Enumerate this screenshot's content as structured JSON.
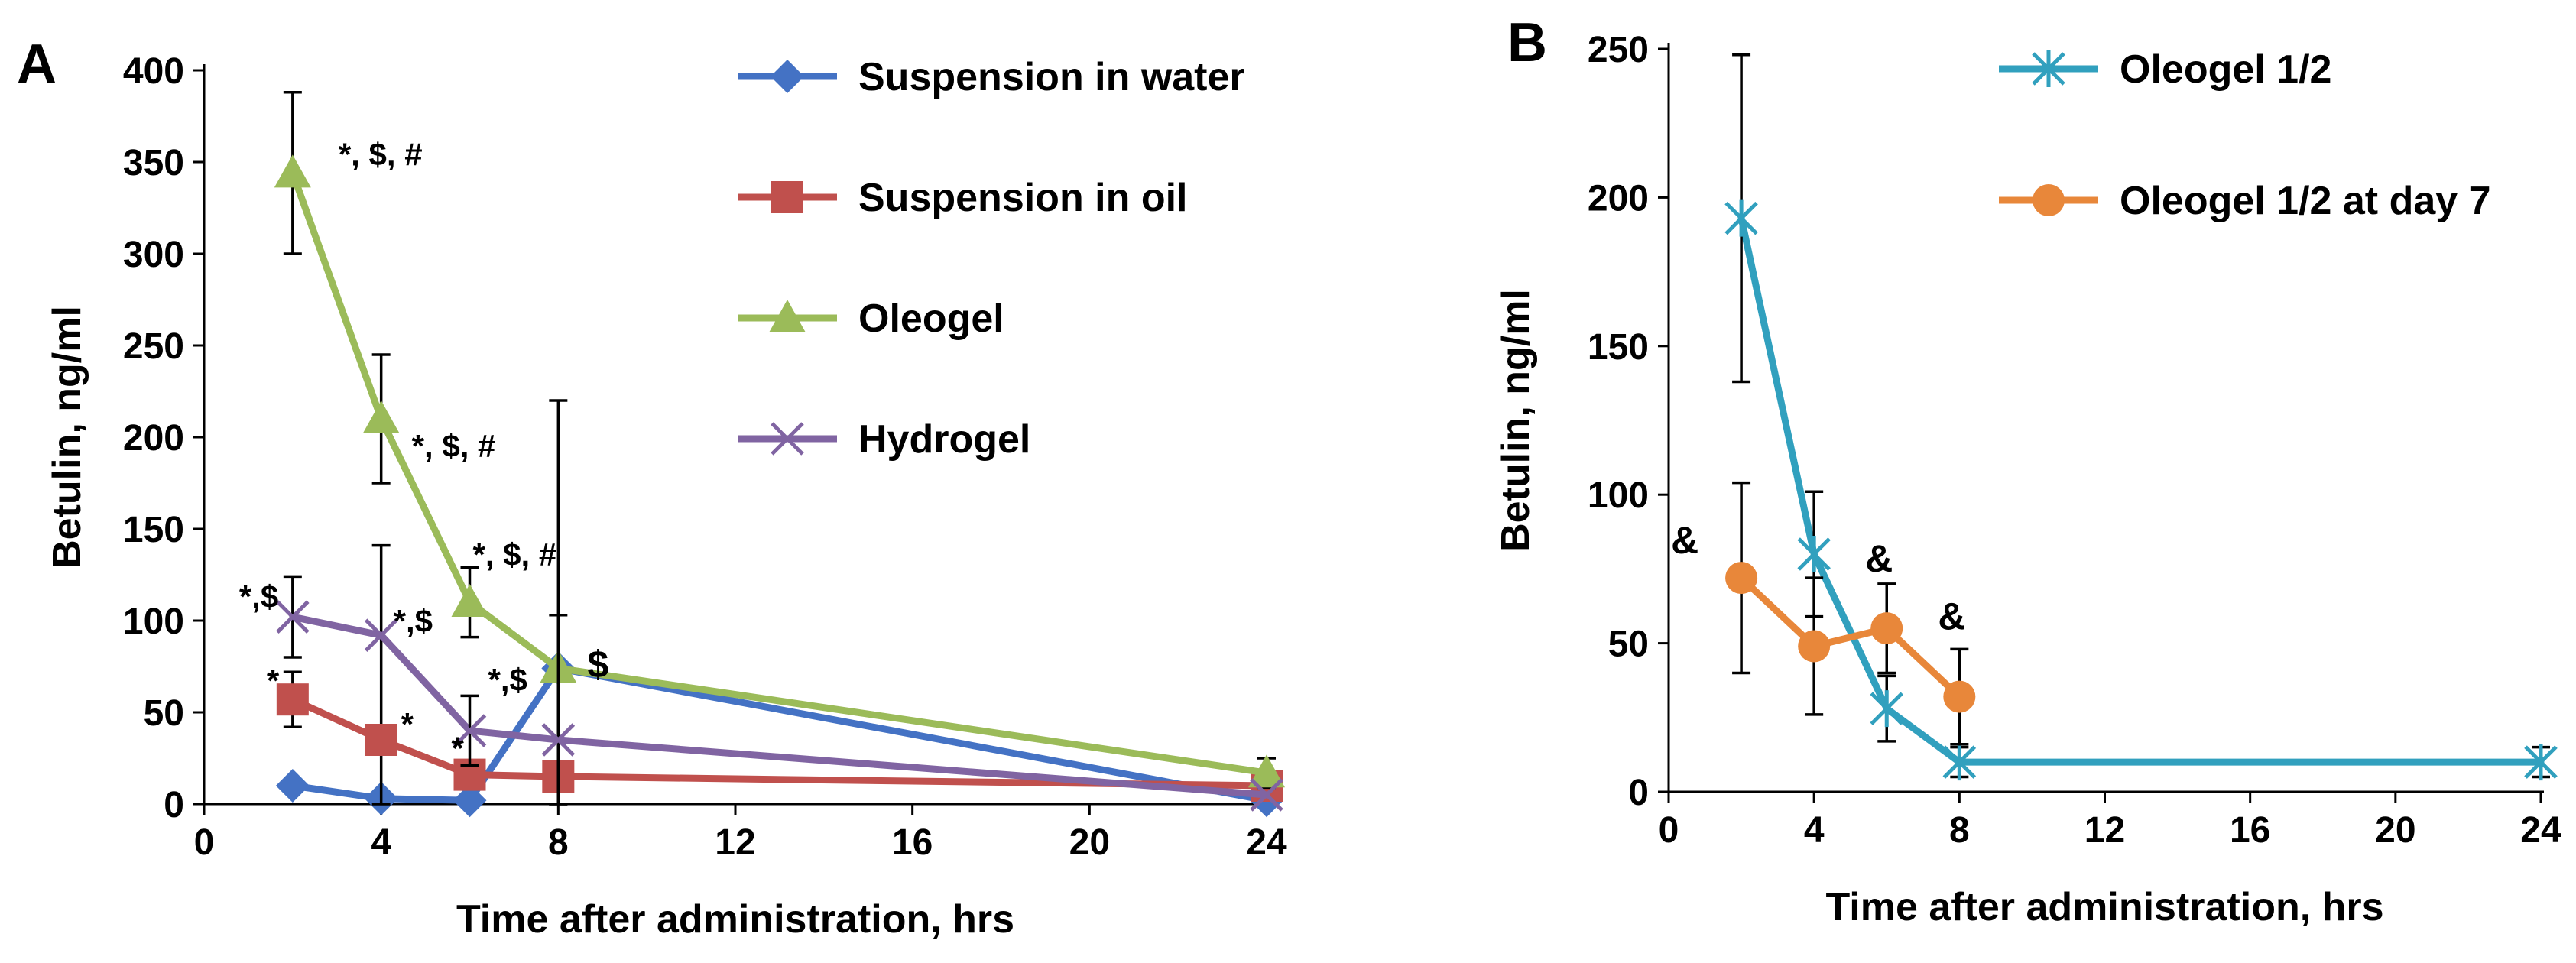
{
  "chart_data": [
    {
      "panel": "A",
      "type": "line",
      "xlabel": "Time after administration, hrs",
      "ylabel": "Betulin, ng/ml",
      "xlim": [
        0,
        24
      ],
      "ylim": [
        0,
        400
      ],
      "x_ticks": [
        "0",
        "4",
        "8",
        "12",
        "16",
        "20",
        "24"
      ],
      "y_ticks": [
        "0",
        "50",
        "100",
        "150",
        "200",
        "250",
        "300",
        "350",
        "400"
      ],
      "legend_position": "top-right",
      "series": [
        {
          "name": "Suspension in water",
          "color": "#4472C4",
          "marker": "diamond",
          "x": [
            2,
            4,
            6,
            8,
            24
          ],
          "y": [
            10,
            3,
            2,
            74,
            2
          ],
          "err": [
            null,
            null,
            null,
            null,
            null
          ]
        },
        {
          "name": "Suspension in oil",
          "color": "#C0504D",
          "marker": "square",
          "x": [
            2,
            4,
            6,
            8,
            24
          ],
          "y": [
            57,
            35,
            16,
            15,
            10
          ],
          "err": [
            15,
            106,
            0,
            0,
            0
          ]
        },
        {
          "name": "Oleogel",
          "color": "#9BBB59",
          "marker": "triangle",
          "x": [
            2,
            4,
            6,
            8,
            24
          ],
          "y": [
            344,
            210,
            110,
            74,
            17
          ],
          "err": [
            44,
            35,
            19,
            146,
            8
          ]
        },
        {
          "name": "Hydrogel",
          "color": "#8064A2",
          "marker": "x",
          "x": [
            2,
            4,
            6,
            8,
            24
          ],
          "y": [
            102,
            92,
            40,
            35,
            5
          ],
          "err": [
            22,
            0,
            19,
            68,
            0
          ]
        }
      ],
      "annotations": [
        {
          "text": "*, $, #",
          "x": 2,
          "y": 344
        },
        {
          "text": "*, $, #",
          "x": 4,
          "y": 210
        },
        {
          "text": "*, $, #",
          "x": 6,
          "y": 110
        },
        {
          "text": "$",
          "x": 8,
          "y": 74
        },
        {
          "text": "*,$",
          "x": 2,
          "y": 102
        },
        {
          "text": "*,$",
          "x": 4,
          "y": 92
        },
        {
          "text": "*,$",
          "x": 6,
          "y": 40
        },
        {
          "text": "*",
          "x": 2,
          "y": 57
        },
        {
          "text": "*",
          "x": 4,
          "y": 35
        },
        {
          "text": "*",
          "x": 6,
          "y": 16
        }
      ]
    },
    {
      "panel": "B",
      "type": "line",
      "xlabel": "Time after administration, hrs",
      "ylabel": "Betulin, ng/ml",
      "xlim": [
        0,
        24
      ],
      "ylim": [
        0,
        250
      ],
      "x_ticks": [
        "0",
        "4",
        "8",
        "12",
        "16",
        "20",
        "24"
      ],
      "y_ticks": [
        "0",
        "50",
        "100",
        "150",
        "200",
        "250"
      ],
      "legend_position": "top-right",
      "series": [
        {
          "name": "Oleogel 1/2",
          "color": "#31A0BE",
          "marker": "asterisk",
          "x": [
            2,
            4,
            6,
            8,
            24
          ],
          "y": [
            193,
            80,
            28,
            10,
            10
          ],
          "err": [
            55,
            21,
            11,
            5,
            5
          ]
        },
        {
          "name": "Oleogel 1/2 at day 7",
          "color": "#E8873A",
          "marker": "circle",
          "x": [
            2,
            4,
            6,
            8
          ],
          "y": [
            72,
            49,
            55,
            32
          ],
          "err": [
            32,
            23,
            15,
            16
          ]
        }
      ],
      "annotations": [
        {
          "text": "&",
          "x": 2,
          "y": 72
        },
        {
          "text": "&",
          "x": 6,
          "y": 55
        },
        {
          "text": "&",
          "x": 8,
          "y": 32
        }
      ]
    }
  ]
}
